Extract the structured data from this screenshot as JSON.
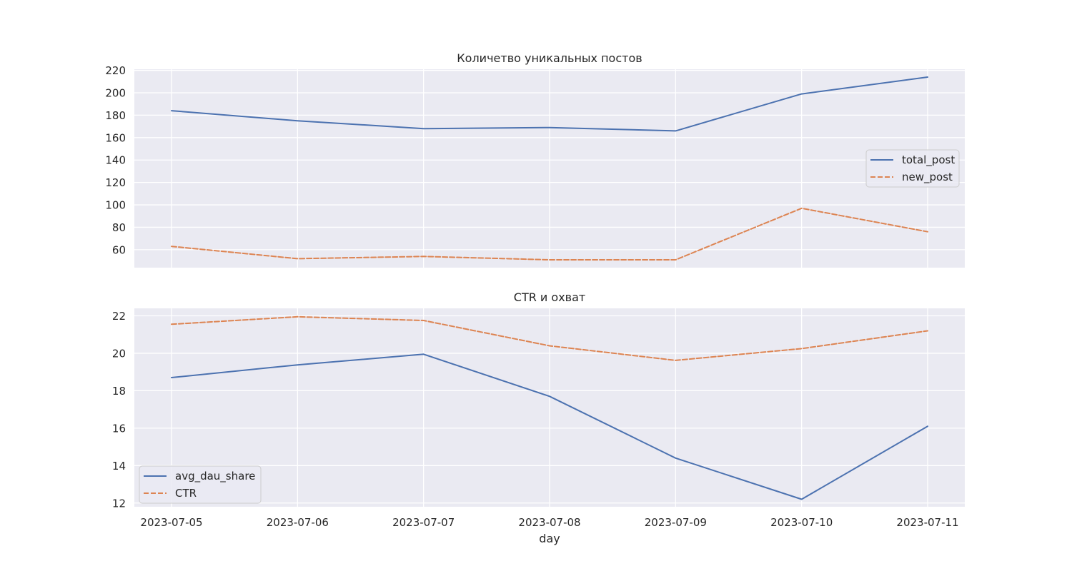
{
  "chart_data": [
    {
      "type": "line",
      "title": "Количетво уникальных постов",
      "xlabel": "",
      "ylabel": "",
      "x": [
        "2023-07-05",
        "2023-07-06",
        "2023-07-07",
        "2023-07-08",
        "2023-07-09",
        "2023-07-10",
        "2023-07-11"
      ],
      "ylim": [
        44,
        221
      ],
      "yticks": [
        60,
        80,
        100,
        120,
        140,
        160,
        180,
        200,
        220
      ],
      "grid": true,
      "legend": "center-right",
      "series": [
        {
          "name": "total_post",
          "style": "solid",
          "color": "#4c72b0",
          "values": [
            184,
            175,
            168,
            169,
            166,
            199,
            214
          ]
        },
        {
          "name": "new_post",
          "style": "dashed",
          "color": "#dd8452",
          "values": [
            63,
            52,
            54,
            51,
            51,
            97,
            76
          ]
        }
      ]
    },
    {
      "type": "line",
      "title": "CTR и охват",
      "xlabel": "day",
      "ylabel": "",
      "x": [
        "2023-07-05",
        "2023-07-06",
        "2023-07-07",
        "2023-07-08",
        "2023-07-09",
        "2023-07-10",
        "2023-07-11"
      ],
      "ylim": [
        11.8,
        22.4
      ],
      "yticks": [
        12,
        14,
        16,
        18,
        20,
        22
      ],
      "grid": true,
      "legend": "lower-left",
      "series": [
        {
          "name": "avg_dau_share",
          "style": "solid",
          "color": "#4c72b0",
          "values": [
            18.7,
            19.38,
            19.95,
            17.7,
            14.4,
            12.2,
            16.1
          ]
        },
        {
          "name": "CTR",
          "style": "dashed",
          "color": "#dd8452",
          "values": [
            21.55,
            21.95,
            21.75,
            20.4,
            19.62,
            20.25,
            21.2
          ]
        }
      ]
    }
  ]
}
